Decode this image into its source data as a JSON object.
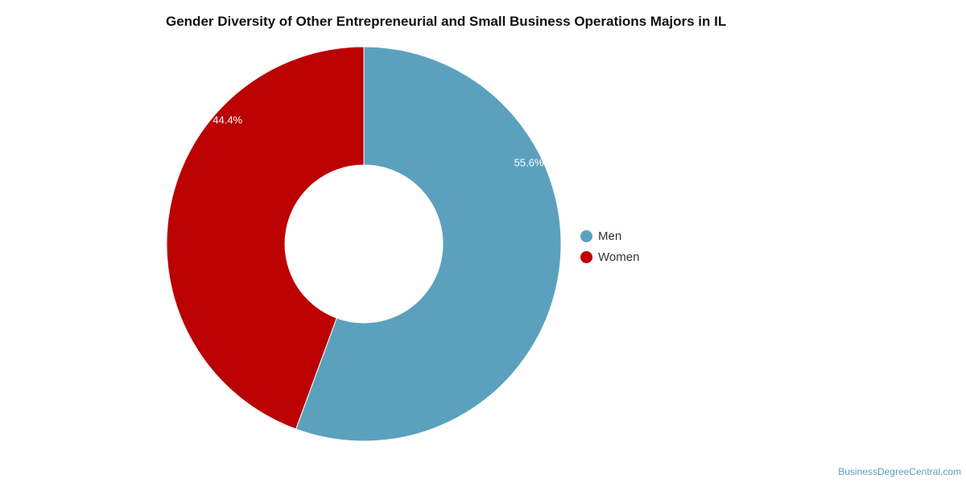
{
  "chart_data": {
    "type": "pie",
    "variant": "donut",
    "title": "Gender Diversity of Other Entrepreneurial and Small Business Operations Majors in IL",
    "categories": [
      "Men",
      "Women"
    ],
    "values": [
      55.6,
      44.4
    ],
    "data_labels": [
      "55.6%",
      "44.4%"
    ],
    "colors": [
      "#5ba1be",
      "#bb0101"
    ],
    "legend": {
      "position": "right",
      "entries": [
        "Men",
        "Women"
      ]
    }
  },
  "watermark": "BusinessDegreeCentral.com"
}
